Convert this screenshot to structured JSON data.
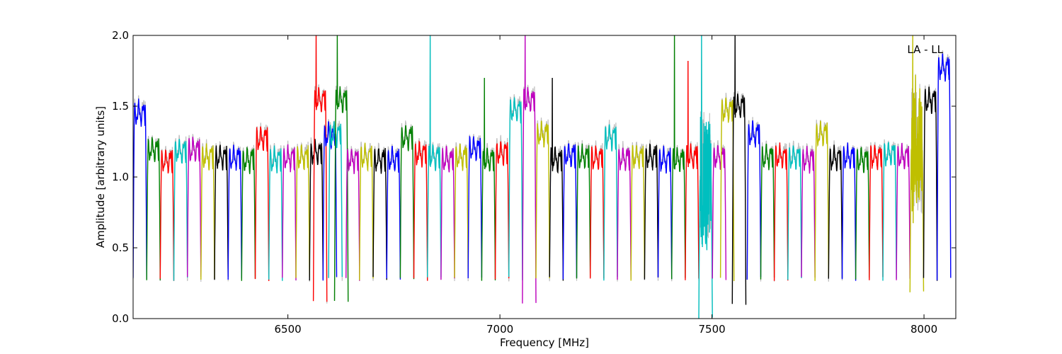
{
  "chart_data": {
    "type": "line",
    "title": "",
    "xlabel": "Frequency [MHz]",
    "ylabel": "Amplitude [arbitrary units]",
    "xlim": [
      6135,
      8075
    ],
    "ylim": [
      0.0,
      2.0
    ],
    "x_ticks": [
      6500,
      7000,
      7500,
      8000
    ],
    "x_tick_labels": [
      "6500",
      "7000",
      "7500",
      "8000"
    ],
    "y_ticks": [
      0.0,
      0.5,
      1.0,
      1.5,
      2.0
    ],
    "y_tick_labels": [
      "0.0",
      "0.5",
      "1.0",
      "1.5",
      "2.0"
    ],
    "grid": false,
    "legend": "none",
    "annotation": {
      "text": "LA - LL",
      "position": "top-right"
    },
    "background_trace_color": "#bfbfbf",
    "channel_width_mhz": 32,
    "typical_peak": 1.2,
    "typical_edge_minimum": 0.28,
    "series": [
      {
        "color": "#0000ff",
        "spws": [
          {
            "start": 6135,
            "peak": 1.53
          }
        ]
      },
      {
        "color": "#008000",
        "spws": [
          {
            "start": 6167,
            "peak": 1.27
          }
        ]
      },
      {
        "color": "#ff0000",
        "spws": [
          {
            "start": 6199,
            "peak": 1.19
          }
        ]
      },
      {
        "color": "#00bfbf",
        "spws": [
          {
            "start": 6231,
            "peak": 1.26
          }
        ]
      },
      {
        "color": "#bf00bf",
        "spws": [
          {
            "start": 6263,
            "peak": 1.27
          }
        ]
      },
      {
        "color": "#bfbf00",
        "spws": [
          {
            "start": 6295,
            "peak": 1.22
          }
        ]
      },
      {
        "color": "#000000",
        "spws": [
          {
            "start": 6327,
            "peak": 1.22
          }
        ]
      },
      {
        "color": "#0000ff",
        "spws": [
          {
            "start": 6359,
            "peak": 1.21
          }
        ]
      },
      {
        "color": "#008000",
        "spws": [
          {
            "start": 6391,
            "peak": 1.2
          }
        ]
      },
      {
        "color": "#ff0000",
        "spws": [
          {
            "start": 6423,
            "peak": 1.35
          }
        ]
      },
      {
        "color": "#00bfbf",
        "spws": [
          {
            "start": 6455,
            "peak": 1.2
          }
        ]
      },
      {
        "color": "#bf00bf",
        "spws": [
          {
            "start": 6487,
            "peak": 1.21
          }
        ]
      },
      {
        "color": "#bfbf00",
        "spws": [
          {
            "start": 6519,
            "peak": 1.22
          }
        ]
      },
      {
        "color": "#000000",
        "spws": [
          {
            "start": 6551,
            "peak": 1.25
          }
        ]
      },
      {
        "color": "#ff0000",
        "spws": [
          {
            "start": 6560,
            "peak": 1.62,
            "spike": 2.0,
            "min": 0.12
          }
        ]
      },
      {
        "color": "#0000ff",
        "spws": [
          {
            "start": 6583,
            "peak": 1.37
          }
        ]
      },
      {
        "color": "#00bfbf",
        "spws": [
          {
            "start": 6596,
            "peak": 1.38
          }
        ]
      },
      {
        "color": "#008000",
        "spws": [
          {
            "start": 6610,
            "peak": 1.62,
            "spike": 2.0,
            "min": 0.12
          }
        ]
      },
      {
        "color": "#bf00bf",
        "spws": [
          {
            "start": 6637,
            "peak": 1.2
          }
        ]
      },
      {
        "color": "#bfbf00",
        "spws": [
          {
            "start": 6669,
            "peak": 1.22
          }
        ]
      },
      {
        "color": "#000000",
        "spws": [
          {
            "start": 6701,
            "peak": 1.2
          }
        ]
      },
      {
        "color": "#0000ff",
        "spws": [
          {
            "start": 6733,
            "peak": 1.2
          }
        ]
      },
      {
        "color": "#008000",
        "spws": [
          {
            "start": 6765,
            "peak": 1.36
          }
        ]
      },
      {
        "color": "#ff0000",
        "spws": [
          {
            "start": 6797,
            "peak": 1.24
          }
        ]
      },
      {
        "color": "#00bfbf",
        "spws": [
          {
            "start": 6829,
            "peak": 1.22,
            "spike": 2.0
          }
        ]
      },
      {
        "color": "#bf00bf",
        "spws": [
          {
            "start": 6861,
            "peak": 1.2
          }
        ]
      },
      {
        "color": "#bfbf00",
        "spws": [
          {
            "start": 6893,
            "peak": 1.22
          }
        ]
      },
      {
        "color": "#0000ff",
        "spws": [
          {
            "start": 6925,
            "peak": 1.28
          }
        ]
      },
      {
        "color": "#008000",
        "spws": [
          {
            "start": 6957,
            "peak": 1.2,
            "spike": 1.7
          }
        ]
      },
      {
        "color": "#ff0000",
        "spws": [
          {
            "start": 6989,
            "peak": 1.25
          }
        ]
      },
      {
        "color": "#00bfbf",
        "spws": [
          {
            "start": 7021,
            "peak": 1.55
          }
        ]
      },
      {
        "color": "#bf00bf",
        "spws": [
          {
            "start": 7053,
            "peak": 1.62,
            "spike": 2.0,
            "min": 0.12
          }
        ]
      },
      {
        "color": "#bfbf00",
        "spws": [
          {
            "start": 7085,
            "peak": 1.38
          }
        ]
      },
      {
        "color": "#000000",
        "spws": [
          {
            "start": 7117,
            "peak": 1.2,
            "spike": 1.7
          }
        ]
      },
      {
        "color": "#0000ff",
        "spws": [
          {
            "start": 7149,
            "peak": 1.23
          }
        ]
      },
      {
        "color": "#008000",
        "spws": [
          {
            "start": 7181,
            "peak": 1.22
          }
        ]
      },
      {
        "color": "#ff0000",
        "spws": [
          {
            "start": 7213,
            "peak": 1.21
          }
        ]
      },
      {
        "color": "#00bfbf",
        "spws": [
          {
            "start": 7245,
            "peak": 1.36
          }
        ]
      },
      {
        "color": "#bf00bf",
        "spws": [
          {
            "start": 7277,
            "peak": 1.21
          }
        ]
      },
      {
        "color": "#bfbf00",
        "spws": [
          {
            "start": 7309,
            "peak": 1.22
          }
        ]
      },
      {
        "color": "#000000",
        "spws": [
          {
            "start": 7341,
            "peak": 1.22
          }
        ]
      },
      {
        "color": "#0000ff",
        "spws": [
          {
            "start": 7373,
            "peak": 1.2
          }
        ]
      },
      {
        "color": "#008000",
        "spws": [
          {
            "start": 7405,
            "peak": 1.2,
            "spike": 2.0
          }
        ]
      },
      {
        "color": "#ff0000",
        "spws": [
          {
            "start": 7437,
            "peak": 1.22,
            "spike": 1.82
          }
        ]
      },
      {
        "color": "#00bfbf",
        "spws": [
          {
            "start": 7469,
            "peak": 1.05,
            "spike": 2.0,
            "min": 0.0,
            "noisy": true
          }
        ]
      },
      {
        "color": "#bf00bf",
        "spws": [
          {
            "start": 7501,
            "peak": 1.22
          }
        ]
      },
      {
        "color": "#bfbf00",
        "spws": [
          {
            "start": 7520,
            "peak": 1.55
          }
        ]
      },
      {
        "color": "#000000",
        "spws": [
          {
            "start": 7548,
            "peak": 1.58,
            "spike": 2.0,
            "min": 0.11
          }
        ]
      },
      {
        "color": "#0000ff",
        "spws": [
          {
            "start": 7583,
            "peak": 1.38
          }
        ]
      },
      {
        "color": "#008000",
        "spws": [
          {
            "start": 7615,
            "peak": 1.22
          }
        ]
      },
      {
        "color": "#ff0000",
        "spws": [
          {
            "start": 7647,
            "peak": 1.22
          }
        ]
      },
      {
        "color": "#00bfbf",
        "spws": [
          {
            "start": 7679,
            "peak": 1.22
          }
        ]
      },
      {
        "color": "#bf00bf",
        "spws": [
          {
            "start": 7711,
            "peak": 1.2
          }
        ]
      },
      {
        "color": "#bfbf00",
        "spws": [
          {
            "start": 7743,
            "peak": 1.38
          }
        ]
      },
      {
        "color": "#000000",
        "spws": [
          {
            "start": 7775,
            "peak": 1.21
          }
        ]
      },
      {
        "color": "#0000ff",
        "spws": [
          {
            "start": 7807,
            "peak": 1.22
          }
        ]
      },
      {
        "color": "#008000",
        "spws": [
          {
            "start": 7839,
            "peak": 1.2
          }
        ]
      },
      {
        "color": "#ff0000",
        "spws": [
          {
            "start": 7871,
            "peak": 1.22
          }
        ]
      },
      {
        "color": "#00bfbf",
        "spws": [
          {
            "start": 7903,
            "peak": 1.24
          }
        ]
      },
      {
        "color": "#bf00bf",
        "spws": [
          {
            "start": 7935,
            "peak": 1.22
          }
        ]
      },
      {
        "color": "#bfbf00",
        "spws": [
          {
            "start": 7967,
            "peak": 1.25,
            "spike": 2.0,
            "min": 0.19,
            "noisy": true
          }
        ]
      },
      {
        "color": "#000000",
        "spws": [
          {
            "start": 7999,
            "peak": 1.62
          }
        ]
      },
      {
        "color": "#0000ff",
        "spws": [
          {
            "start": 8031,
            "peak": 1.85
          }
        ]
      }
    ]
  }
}
